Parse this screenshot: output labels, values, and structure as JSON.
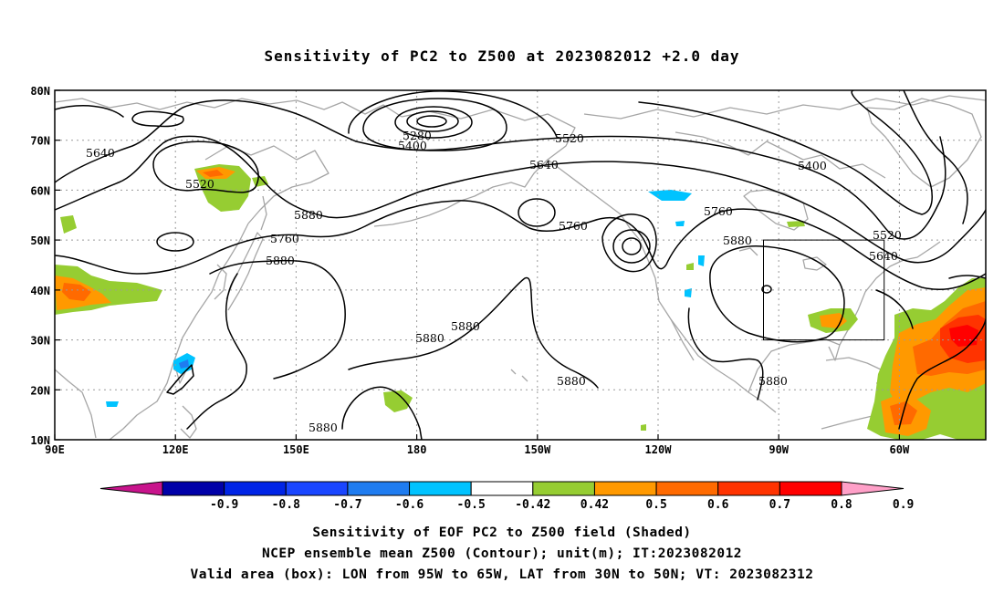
{
  "title": "Sensitivity of PC2 to Z500 at 2023082012 +2.0 day",
  "latitude_labels": [
    "80N",
    "70N",
    "60N",
    "50N",
    "40N",
    "30N",
    "20N",
    "10N"
  ],
  "longitude_labels": [
    "90E",
    "120E",
    "150E",
    "180",
    "150W",
    "120W",
    "90W",
    "60W"
  ],
  "contour_labels": [
    "5280",
    "5400",
    "5520",
    "5640",
    "5760",
    "5880",
    "5520",
    "5640",
    "5760",
    "5880",
    "5400",
    "5520",
    "5640",
    "5760",
    "5880",
    "5880",
    "5880",
    "5880",
    "5880",
    "5880"
  ],
  "colorbar": {
    "tick_labels": [
      "-0.9",
      "-0.8",
      "-0.7",
      "-0.6",
      "-0.5",
      "-0.42",
      "0.42",
      "0.5",
      "0.6",
      "0.7",
      "0.8",
      "0.9"
    ],
    "colors": [
      "#0000a8",
      "#0024e6",
      "#1a46ff",
      "#1f7cf0",
      "#00c3ff",
      "#ffffff",
      "#96cd32",
      "#ff9900",
      "#ff6a00",
      "#ff3300",
      "#ff0000"
    ],
    "low_extend_color": "#c8148c",
    "high_extend_color": "#ffa0c8"
  },
  "footer": {
    "line1": "Sensitivity of EOF PC2 to Z500 field (Shaded)",
    "line2": "NCEP ensemble mean Z500 (Contour); unit(m); IT:2023082012",
    "line3": "Valid area (box): LON from 95W to 65W, LAT from 30N to 50N; VT: 2023082312"
  },
  "valid_box": {
    "lon_west": -95,
    "lon_east": -65,
    "lat_south": 30,
    "lat_north": 50
  }
}
